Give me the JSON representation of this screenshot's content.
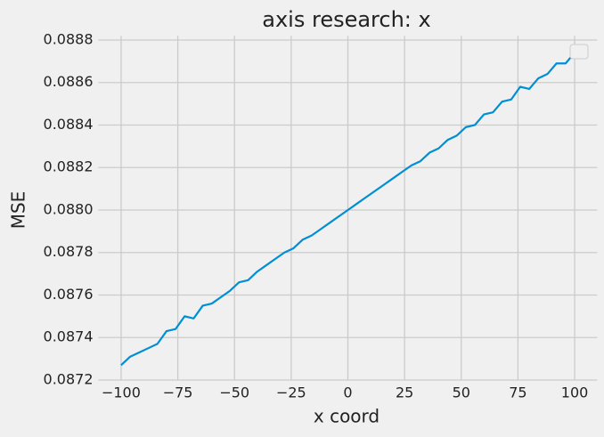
{
  "chart_data": {
    "type": "line",
    "title": "axis research: x",
    "x_label": "x coord",
    "y_label": "MSE",
    "x": [
      -100,
      -96,
      -92,
      -88,
      -84,
      -80,
      -76,
      -72,
      -68,
      -64,
      -60,
      -56,
      -52,
      -48,
      -44,
      -40,
      -36,
      -32,
      -28,
      -24,
      -20,
      -16,
      -12,
      -8,
      -4,
      0,
      4,
      8,
      12,
      16,
      20,
      24,
      28,
      32,
      36,
      40,
      44,
      48,
      52,
      56,
      60,
      64,
      68,
      72,
      76,
      80,
      84,
      88,
      92,
      96,
      100
    ],
    "series": [
      {
        "color": "#008fd5",
        "values": [
          0.08727,
          0.08731,
          0.08733,
          0.08735,
          0.08737,
          0.08743,
          0.08744,
          0.0875,
          0.08749,
          0.08755,
          0.08756,
          0.08759,
          0.08762,
          0.08766,
          0.08767,
          0.08771,
          0.08774,
          0.08777,
          0.0878,
          0.08782,
          0.08786,
          0.08788,
          0.08791,
          0.08794,
          0.08797,
          0.088,
          0.08803,
          0.08806,
          0.08809,
          0.08812,
          0.08815,
          0.08818,
          0.08821,
          0.08823,
          0.08827,
          0.08829,
          0.08833,
          0.08835,
          0.08839,
          0.0884,
          0.08845,
          0.08846,
          0.08851,
          0.08852,
          0.08858,
          0.08857,
          0.08862,
          0.08864,
          0.08869,
          0.08869,
          0.08874
        ]
      }
    ],
    "xlim": [
      -110,
      110
    ],
    "ylim": [
      0.0872,
      0.08882
    ],
    "xticks": [
      {
        "value": -100,
        "label": "−100"
      },
      {
        "value": -75,
        "label": "−75"
      },
      {
        "value": -50,
        "label": "−50"
      },
      {
        "value": -25,
        "label": "−25"
      },
      0,
      25,
      50,
      75,
      100
    ],
    "yticks": [
      0.0872,
      0.0874,
      0.0876,
      0.0878,
      {
        "value": 0.088,
        "label": "0.0880"
      },
      0.0882,
      0.0884,
      0.0886,
      0.0888
    ],
    "grid": true
  }
}
